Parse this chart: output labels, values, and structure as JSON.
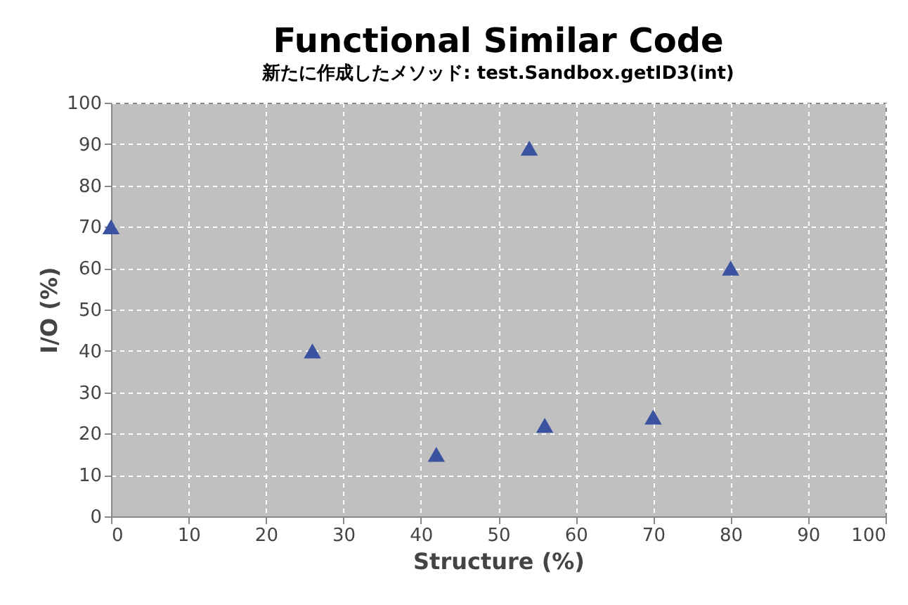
{
  "chart_data": {
    "type": "scatter",
    "title": "Functional Similar Code",
    "subtitle": "新たに作成したメソッド: test.Sandbox.getID3(int)",
    "xlabel": "Structure (%)",
    "ylabel": "I/O (%)",
    "x": [
      0,
      26,
      42,
      54,
      56,
      70,
      80
    ],
    "series": [
      {
        "color": "#3a52a0",
        "values": [
          70,
          40,
          15,
          89,
          22,
          24,
          60
        ]
      }
    ],
    "xlim": [
      0,
      100
    ],
    "ylim": [
      0,
      100
    ],
    "xticks": [
      0,
      10,
      20,
      30,
      40,
      50,
      60,
      70,
      80,
      90,
      100
    ],
    "yticks": [
      0,
      10,
      20,
      30,
      40,
      50,
      60,
      70,
      80,
      90,
      100
    ],
    "grid": true,
    "marker": "triangle"
  }
}
